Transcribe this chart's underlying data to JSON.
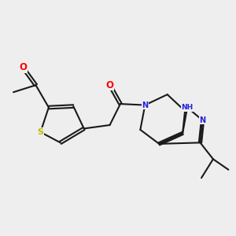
{
  "background_color": "#eeeeee",
  "bond_color": "#1a1a1a",
  "bond_width": 1.5,
  "atom_colors": {
    "O": "#ff0000",
    "N": "#2222dd",
    "S": "#bbbb00",
    "C": "#1a1a1a",
    "H": "#1a1a1a"
  },
  "font_size": 7.0,
  "figsize": [
    3.0,
    3.0
  ],
  "dpi": 100
}
